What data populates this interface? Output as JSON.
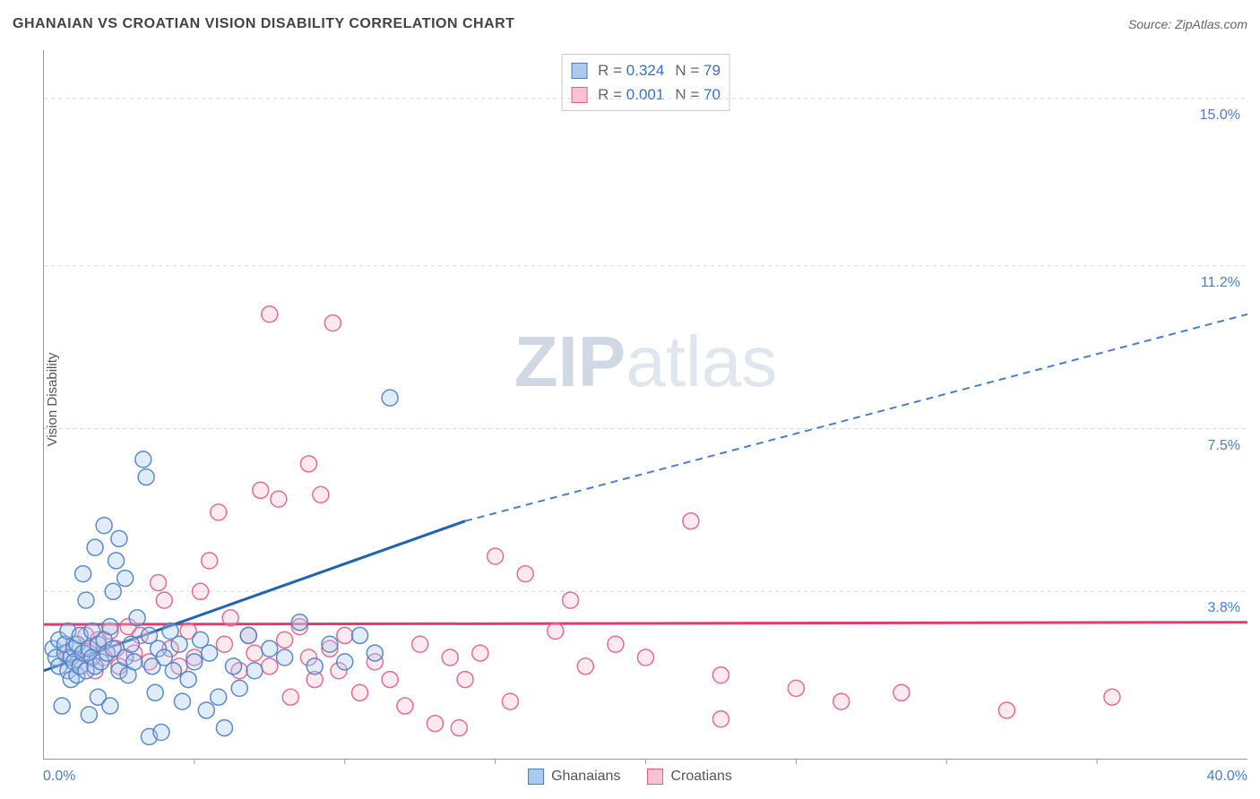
{
  "title": "GHANAIAN VS CROATIAN VISION DISABILITY CORRELATION CHART",
  "source": "Source: ZipAtlas.com",
  "ylabel": "Vision Disability",
  "watermark": {
    "left": "ZIP",
    "right": "atlas"
  },
  "chart": {
    "type": "scatter",
    "background_color": "#ffffff",
    "grid_color": "#d8d8d8",
    "xlim": [
      0,
      40
    ],
    "ylim": [
      0,
      16.1
    ],
    "x_minor_tick_step": 5,
    "xticks_label": {
      "min": "0.0%",
      "max": "40.0%"
    },
    "yticks": [
      {
        "value": 3.8,
        "label": "3.8%"
      },
      {
        "value": 7.5,
        "label": "7.5%"
      },
      {
        "value": 11.2,
        "label": "11.2%"
      },
      {
        "value": 15.0,
        "label": "15.0%"
      }
    ],
    "marker_radius": 9,
    "marker_stroke_opacity": 0.9,
    "marker_fill_opacity": 0.35,
    "series": [
      {
        "name": "Ghanaians",
        "color_fill": "#a9c9ed",
        "color_stroke": "#4a7ec9",
        "R": "0.324",
        "N": "79",
        "trend": {
          "color": "#1e63b6",
          "width": 3,
          "dash_color": "#4a7ec9",
          "x1": 0,
          "y1": 2.0,
          "x2_solid": 14.0,
          "y2_solid": 5.4,
          "x2": 40,
          "y2": 10.1
        },
        "points": [
          [
            0.3,
            2.5
          ],
          [
            0.4,
            2.3
          ],
          [
            0.5,
            2.1
          ],
          [
            0.5,
            2.7
          ],
          [
            0.6,
            1.2
          ],
          [
            0.7,
            2.4
          ],
          [
            0.7,
            2.6
          ],
          [
            0.8,
            2.0
          ],
          [
            0.8,
            2.9
          ],
          [
            0.9,
            1.8
          ],
          [
            0.9,
            2.3
          ],
          [
            1.0,
            2.5
          ],
          [
            1.0,
            2.2
          ],
          [
            1.1,
            1.9
          ],
          [
            1.1,
            2.6
          ],
          [
            1.2,
            2.1
          ],
          [
            1.2,
            2.8
          ],
          [
            1.3,
            2.4
          ],
          [
            1.3,
            4.2
          ],
          [
            1.4,
            2.0
          ],
          [
            1.4,
            3.6
          ],
          [
            1.5,
            2.5
          ],
          [
            1.5,
            1.0
          ],
          [
            1.6,
            2.3
          ],
          [
            1.6,
            2.9
          ],
          [
            1.7,
            2.1
          ],
          [
            1.7,
            4.8
          ],
          [
            1.8,
            2.6
          ],
          [
            1.8,
            1.4
          ],
          [
            1.9,
            2.2
          ],
          [
            2.0,
            2.7
          ],
          [
            2.0,
            5.3
          ],
          [
            2.1,
            2.4
          ],
          [
            2.2,
            1.2
          ],
          [
            2.2,
            3.0
          ],
          [
            2.3,
            2.5
          ],
          [
            2.3,
            3.8
          ],
          [
            2.4,
            4.5
          ],
          [
            2.5,
            2.0
          ],
          [
            2.5,
            5.0
          ],
          [
            2.7,
            2.3
          ],
          [
            2.7,
            4.1
          ],
          [
            2.8,
            1.9
          ],
          [
            2.9,
            2.6
          ],
          [
            3.0,
            2.2
          ],
          [
            3.1,
            3.2
          ],
          [
            3.3,
            6.8
          ],
          [
            3.4,
            6.4
          ],
          [
            3.5,
            2.8
          ],
          [
            3.5,
            0.5
          ],
          [
            3.6,
            2.1
          ],
          [
            3.7,
            1.5
          ],
          [
            3.8,
            2.5
          ],
          [
            3.9,
            0.6
          ],
          [
            4.0,
            2.3
          ],
          [
            4.2,
            2.9
          ],
          [
            4.3,
            2.0
          ],
          [
            4.5,
            2.6
          ],
          [
            4.6,
            1.3
          ],
          [
            4.8,
            1.8
          ],
          [
            5.0,
            2.2
          ],
          [
            5.2,
            2.7
          ],
          [
            5.4,
            1.1
          ],
          [
            5.5,
            2.4
          ],
          [
            5.8,
            1.4
          ],
          [
            6.0,
            0.7
          ],
          [
            6.3,
            2.1
          ],
          [
            6.5,
            1.6
          ],
          [
            6.8,
            2.8
          ],
          [
            7.0,
            2.0
          ],
          [
            7.5,
            2.5
          ],
          [
            8.0,
            2.3
          ],
          [
            8.5,
            3.1
          ],
          [
            9.0,
            2.1
          ],
          [
            9.5,
            2.6
          ],
          [
            10.0,
            2.2
          ],
          [
            10.5,
            2.8
          ],
          [
            11.0,
            2.4
          ],
          [
            11.5,
            8.2
          ]
        ]
      },
      {
        "name": "Croatians",
        "color_fill": "#f6c3d0",
        "color_stroke": "#e65c87",
        "R": "0.001",
        "N": "70",
        "trend": {
          "color": "#e03a6e",
          "width": 3,
          "x1": 0,
          "y1": 3.05,
          "x2": 40,
          "y2": 3.1
        },
        "points": [
          [
            0.8,
            2.3
          ],
          [
            1.0,
            2.6
          ],
          [
            1.2,
            2.1
          ],
          [
            1.4,
            2.8
          ],
          [
            1.5,
            2.4
          ],
          [
            1.7,
            2.0
          ],
          [
            1.8,
            2.7
          ],
          [
            2.0,
            2.3
          ],
          [
            2.2,
            2.9
          ],
          [
            2.4,
            2.5
          ],
          [
            2.5,
            2.1
          ],
          [
            2.8,
            3.0
          ],
          [
            3.0,
            2.4
          ],
          [
            3.2,
            2.8
          ],
          [
            3.5,
            2.2
          ],
          [
            3.8,
            4.0
          ],
          [
            4.0,
            3.6
          ],
          [
            4.2,
            2.5
          ],
          [
            4.5,
            2.1
          ],
          [
            4.8,
            2.9
          ],
          [
            5.0,
            2.3
          ],
          [
            5.2,
            3.8
          ],
          [
            5.5,
            4.5
          ],
          [
            5.8,
            5.6
          ],
          [
            6.0,
            2.6
          ],
          [
            6.2,
            3.2
          ],
          [
            6.5,
            2.0
          ],
          [
            6.8,
            2.8
          ],
          [
            7.0,
            2.4
          ],
          [
            7.2,
            6.1
          ],
          [
            7.5,
            2.1
          ],
          [
            7.5,
            10.1
          ],
          [
            7.8,
            5.9
          ],
          [
            8.0,
            2.7
          ],
          [
            8.8,
            6.7
          ],
          [
            8.2,
            1.4
          ],
          [
            8.5,
            3.0
          ],
          [
            8.8,
            2.3
          ],
          [
            9.0,
            1.8
          ],
          [
            9.2,
            6.0
          ],
          [
            9.5,
            2.5
          ],
          [
            9.6,
            9.9
          ],
          [
            9.8,
            2.0
          ],
          [
            10.0,
            2.8
          ],
          [
            10.5,
            1.5
          ],
          [
            11.0,
            2.2
          ],
          [
            11.5,
            1.8
          ],
          [
            12.0,
            1.2
          ],
          [
            12.5,
            2.6
          ],
          [
            13.0,
            0.8
          ],
          [
            13.5,
            2.3
          ],
          [
            13.8,
            0.7
          ],
          [
            14.0,
            1.8
          ],
          [
            14.5,
            2.4
          ],
          [
            15.0,
            4.6
          ],
          [
            15.5,
            1.3
          ],
          [
            16.0,
            4.2
          ],
          [
            17.0,
            2.9
          ],
          [
            17.5,
            3.6
          ],
          [
            18.0,
            2.1
          ],
          [
            19.0,
            2.6
          ],
          [
            20.0,
            2.3
          ],
          [
            21.5,
            5.4
          ],
          [
            22.5,
            1.9
          ],
          [
            22.5,
            0.9
          ],
          [
            25.0,
            1.6
          ],
          [
            26.5,
            1.3
          ],
          [
            28.5,
            1.5
          ],
          [
            32.0,
            1.1
          ],
          [
            35.5,
            1.4
          ]
        ]
      }
    ]
  },
  "stat_box": {
    "R_label": "R =",
    "N_label": "N ="
  },
  "legend": {
    "blue_label": "Ghanaians",
    "pink_label": "Croatians"
  }
}
